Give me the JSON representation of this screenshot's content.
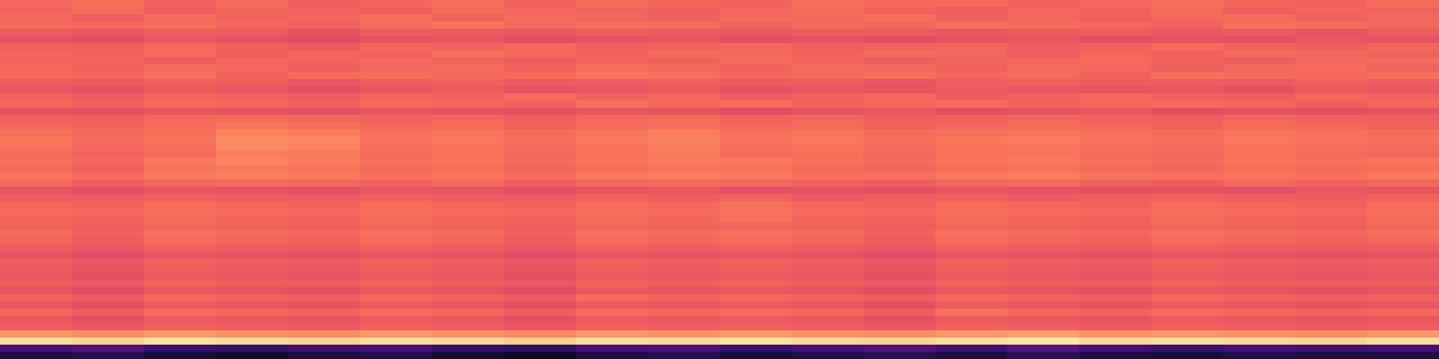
{
  "chart_data": {
    "type": "heatmap",
    "tick_labels": false,
    "color_range": [
      0,
      1
    ],
    "z": [
      [
        0.68,
        0.7,
        0.67,
        0.69,
        0.66,
        0.68,
        0.7,
        0.67,
        0.69,
        0.68,
        0.67,
        0.7,
        0.68,
        0.69,
        0.67,
        0.68,
        0.7,
        0.68,
        0.67,
        0.69
      ],
      [
        0.67,
        0.69,
        0.66,
        0.68,
        0.67,
        0.66,
        0.69,
        0.68,
        0.67,
        0.66,
        0.68,
        0.69,
        0.67,
        0.66,
        0.68,
        0.67,
        0.69,
        0.66,
        0.68,
        0.67
      ],
      [
        0.68,
        0.66,
        0.69,
        0.67,
        0.68,
        0.7,
        0.67,
        0.69,
        0.68,
        0.67,
        0.69,
        0.68,
        0.7,
        0.67,
        0.68,
        0.66,
        0.68,
        0.69,
        0.67,
        0.68
      ],
      [
        0.69,
        0.68,
        0.7,
        0.68,
        0.67,
        0.69,
        0.71,
        0.68,
        0.7,
        0.69,
        0.67,
        0.69,
        0.68,
        0.7,
        0.69,
        0.68,
        0.67,
        0.7,
        0.69,
        0.68
      ],
      [
        0.65,
        0.64,
        0.66,
        0.65,
        0.63,
        0.66,
        0.65,
        0.64,
        0.66,
        0.65,
        0.64,
        0.66,
        0.65,
        0.64,
        0.65,
        0.66,
        0.64,
        0.65,
        0.63,
        0.65
      ],
      [
        0.63,
        0.62,
        0.64,
        0.63,
        0.61,
        0.63,
        0.64,
        0.62,
        0.63,
        0.64,
        0.62,
        0.63,
        0.61,
        0.63,
        0.64,
        0.62,
        0.63,
        0.62,
        0.64,
        0.63
      ],
      [
        0.67,
        0.66,
        0.68,
        0.67,
        0.65,
        0.68,
        0.67,
        0.69,
        0.66,
        0.67,
        0.68,
        0.66,
        0.67,
        0.68,
        0.66,
        0.67,
        0.69,
        0.67,
        0.66,
        0.68
      ],
      [
        0.68,
        0.67,
        0.69,
        0.66,
        0.68,
        0.67,
        0.7,
        0.68,
        0.67,
        0.69,
        0.68,
        0.67,
        0.69,
        0.68,
        0.66,
        0.68,
        0.67,
        0.69,
        0.68,
        0.67
      ],
      [
        0.67,
        0.68,
        0.66,
        0.68,
        0.67,
        0.69,
        0.67,
        0.66,
        0.68,
        0.67,
        0.69,
        0.68,
        0.66,
        0.67,
        0.68,
        0.69,
        0.67,
        0.66,
        0.68,
        0.69
      ],
      [
        0.68,
        0.67,
        0.69,
        0.68,
        0.66,
        0.68,
        0.69,
        0.67,
        0.7,
        0.68,
        0.67,
        0.69,
        0.68,
        0.67,
        0.69,
        0.68,
        0.66,
        0.68,
        0.69,
        0.67
      ],
      [
        0.69,
        0.68,
        0.7,
        0.67,
        0.69,
        0.7,
        0.68,
        0.69,
        0.71,
        0.7,
        0.68,
        0.69,
        0.7,
        0.68,
        0.69,
        0.67,
        0.7,
        0.69,
        0.68,
        0.7
      ],
      [
        0.66,
        0.65,
        0.67,
        0.66,
        0.64,
        0.66,
        0.67,
        0.65,
        0.66,
        0.67,
        0.65,
        0.66,
        0.64,
        0.66,
        0.67,
        0.65,
        0.66,
        0.65,
        0.67,
        0.66
      ],
      [
        0.64,
        0.63,
        0.65,
        0.64,
        0.62,
        0.64,
        0.65,
        0.63,
        0.64,
        0.65,
        0.63,
        0.64,
        0.63,
        0.65,
        0.64,
        0.63,
        0.64,
        0.62,
        0.65,
        0.64
      ],
      [
        0.67,
        0.66,
        0.68,
        0.67,
        0.66,
        0.68,
        0.67,
        0.69,
        0.67,
        0.68,
        0.66,
        0.67,
        0.68,
        0.66,
        0.67,
        0.68,
        0.67,
        0.66,
        0.68,
        0.67
      ],
      [
        0.68,
        0.67,
        0.69,
        0.68,
        0.67,
        0.69,
        0.68,
        0.67,
        0.7,
        0.68,
        0.69,
        0.67,
        0.68,
        0.69,
        0.67,
        0.68,
        0.69,
        0.68,
        0.66,
        0.68
      ],
      [
        0.63,
        0.62,
        0.64,
        0.63,
        0.62,
        0.64,
        0.63,
        0.62,
        0.64,
        0.63,
        0.61,
        0.63,
        0.64,
        0.62,
        0.63,
        0.64,
        0.62,
        0.63,
        0.62,
        0.63
      ],
      [
        0.67,
        0.66,
        0.68,
        0.69,
        0.68,
        0.67,
        0.68,
        0.66,
        0.68,
        0.69,
        0.67,
        0.68,
        0.66,
        0.67,
        0.68,
        0.67,
        0.66,
        0.68,
        0.67,
        0.66
      ],
      [
        0.68,
        0.67,
        0.69,
        0.71,
        0.7,
        0.68,
        0.69,
        0.67,
        0.69,
        0.7,
        0.68,
        0.69,
        0.67,
        0.68,
        0.69,
        0.68,
        0.67,
        0.69,
        0.68,
        0.67
      ],
      [
        0.7,
        0.68,
        0.7,
        0.74,
        0.73,
        0.7,
        0.71,
        0.69,
        0.71,
        0.73,
        0.7,
        0.71,
        0.69,
        0.7,
        0.71,
        0.7,
        0.69,
        0.71,
        0.7,
        0.69
      ],
      [
        0.72,
        0.69,
        0.71,
        0.76,
        0.75,
        0.71,
        0.72,
        0.7,
        0.72,
        0.74,
        0.71,
        0.72,
        0.7,
        0.72,
        0.73,
        0.71,
        0.7,
        0.72,
        0.71,
        0.7
      ],
      [
        0.71,
        0.68,
        0.7,
        0.75,
        0.74,
        0.7,
        0.71,
        0.69,
        0.71,
        0.73,
        0.7,
        0.71,
        0.69,
        0.71,
        0.72,
        0.7,
        0.69,
        0.71,
        0.7,
        0.69
      ],
      [
        0.69,
        0.67,
        0.69,
        0.73,
        0.72,
        0.69,
        0.7,
        0.68,
        0.7,
        0.72,
        0.69,
        0.7,
        0.68,
        0.7,
        0.71,
        0.69,
        0.68,
        0.7,
        0.69,
        0.68
      ],
      [
        0.7,
        0.68,
        0.72,
        0.74,
        0.73,
        0.7,
        0.71,
        0.69,
        0.71,
        0.73,
        0.72,
        0.7,
        0.69,
        0.71,
        0.72,
        0.7,
        0.69,
        0.71,
        0.7,
        0.71
      ],
      [
        0.69,
        0.67,
        0.71,
        0.72,
        0.71,
        0.69,
        0.7,
        0.68,
        0.7,
        0.71,
        0.71,
        0.69,
        0.68,
        0.7,
        0.71,
        0.69,
        0.68,
        0.7,
        0.69,
        0.7
      ],
      [
        0.71,
        0.69,
        0.72,
        0.73,
        0.72,
        0.7,
        0.71,
        0.69,
        0.72,
        0.73,
        0.72,
        0.7,
        0.7,
        0.72,
        0.73,
        0.71,
        0.7,
        0.71,
        0.7,
        0.72
      ],
      [
        0.68,
        0.66,
        0.68,
        0.69,
        0.68,
        0.67,
        0.68,
        0.66,
        0.68,
        0.69,
        0.68,
        0.67,
        0.66,
        0.68,
        0.69,
        0.67,
        0.66,
        0.68,
        0.67,
        0.68
      ],
      [
        0.63,
        0.62,
        0.64,
        0.63,
        0.62,
        0.64,
        0.63,
        0.62,
        0.63,
        0.64,
        0.62,
        0.63,
        0.62,
        0.64,
        0.63,
        0.62,
        0.63,
        0.62,
        0.64,
        0.63
      ],
      [
        0.66,
        0.65,
        0.67,
        0.66,
        0.65,
        0.67,
        0.66,
        0.65,
        0.67,
        0.66,
        0.67,
        0.65,
        0.66,
        0.67,
        0.65,
        0.66,
        0.67,
        0.66,
        0.65,
        0.67
      ],
      [
        0.68,
        0.67,
        0.69,
        0.68,
        0.67,
        0.69,
        0.68,
        0.67,
        0.69,
        0.68,
        0.7,
        0.68,
        0.67,
        0.69,
        0.68,
        0.67,
        0.69,
        0.68,
        0.67,
        0.69
      ],
      [
        0.69,
        0.68,
        0.7,
        0.69,
        0.68,
        0.7,
        0.69,
        0.68,
        0.7,
        0.69,
        0.71,
        0.69,
        0.68,
        0.7,
        0.69,
        0.68,
        0.7,
        0.69,
        0.68,
        0.7
      ],
      [
        0.68,
        0.67,
        0.69,
        0.68,
        0.67,
        0.69,
        0.68,
        0.67,
        0.69,
        0.68,
        0.7,
        0.68,
        0.67,
        0.69,
        0.68,
        0.67,
        0.69,
        0.68,
        0.67,
        0.69
      ],
      [
        0.67,
        0.66,
        0.68,
        0.67,
        0.66,
        0.68,
        0.67,
        0.66,
        0.68,
        0.67,
        0.68,
        0.67,
        0.66,
        0.68,
        0.67,
        0.66,
        0.68,
        0.67,
        0.66,
        0.68
      ],
      [
        0.69,
        0.67,
        0.7,
        0.69,
        0.68,
        0.7,
        0.69,
        0.67,
        0.7,
        0.69,
        0.7,
        0.69,
        0.67,
        0.7,
        0.69,
        0.68,
        0.7,
        0.69,
        0.68,
        0.7
      ],
      [
        0.68,
        0.66,
        0.69,
        0.68,
        0.67,
        0.69,
        0.68,
        0.66,
        0.69,
        0.68,
        0.69,
        0.68,
        0.66,
        0.69,
        0.68,
        0.67,
        0.69,
        0.68,
        0.67,
        0.68
      ],
      [
        0.66,
        0.64,
        0.67,
        0.66,
        0.65,
        0.67,
        0.66,
        0.64,
        0.67,
        0.66,
        0.67,
        0.66,
        0.64,
        0.67,
        0.66,
        0.65,
        0.67,
        0.66,
        0.65,
        0.66
      ],
      [
        0.63,
        0.61,
        0.64,
        0.63,
        0.62,
        0.64,
        0.63,
        0.61,
        0.64,
        0.63,
        0.64,
        0.63,
        0.61,
        0.64,
        0.63,
        0.62,
        0.64,
        0.63,
        0.62,
        0.63
      ],
      [
        0.66,
        0.64,
        0.67,
        0.66,
        0.65,
        0.67,
        0.66,
        0.64,
        0.67,
        0.66,
        0.67,
        0.66,
        0.64,
        0.67,
        0.66,
        0.65,
        0.67,
        0.66,
        0.65,
        0.66
      ],
      [
        0.65,
        0.63,
        0.66,
        0.65,
        0.64,
        0.66,
        0.65,
        0.63,
        0.66,
        0.65,
        0.66,
        0.65,
        0.63,
        0.66,
        0.65,
        0.64,
        0.66,
        0.65,
        0.64,
        0.65
      ],
      [
        0.64,
        0.62,
        0.65,
        0.64,
        0.63,
        0.65,
        0.64,
        0.62,
        0.65,
        0.64,
        0.65,
        0.64,
        0.62,
        0.65,
        0.64,
        0.63,
        0.65,
        0.64,
        0.63,
        0.64
      ],
      [
        0.66,
        0.64,
        0.67,
        0.66,
        0.65,
        0.67,
        0.66,
        0.64,
        0.67,
        0.66,
        0.67,
        0.66,
        0.64,
        0.67,
        0.66,
        0.65,
        0.67,
        0.66,
        0.65,
        0.66
      ],
      [
        0.63,
        0.61,
        0.64,
        0.63,
        0.62,
        0.64,
        0.63,
        0.61,
        0.64,
        0.63,
        0.64,
        0.63,
        0.61,
        0.64,
        0.63,
        0.62,
        0.64,
        0.63,
        0.62,
        0.63
      ],
      [
        0.67,
        0.65,
        0.68,
        0.67,
        0.66,
        0.68,
        0.67,
        0.65,
        0.69,
        0.67,
        0.68,
        0.67,
        0.66,
        0.68,
        0.67,
        0.66,
        0.68,
        0.67,
        0.66,
        0.67
      ],
      [
        0.64,
        0.62,
        0.65,
        0.64,
        0.63,
        0.65,
        0.64,
        0.62,
        0.65,
        0.64,
        0.65,
        0.64,
        0.62,
        0.65,
        0.64,
        0.63,
        0.65,
        0.64,
        0.63,
        0.64
      ],
      [
        0.68,
        0.66,
        0.69,
        0.68,
        0.67,
        0.69,
        0.68,
        0.66,
        0.69,
        0.68,
        0.69,
        0.68,
        0.66,
        0.7,
        0.68,
        0.67,
        0.69,
        0.68,
        0.67,
        0.68
      ],
      [
        0.64,
        0.62,
        0.65,
        0.64,
        0.63,
        0.65,
        0.64,
        0.62,
        0.65,
        0.64,
        0.65,
        0.64,
        0.62,
        0.65,
        0.64,
        0.63,
        0.65,
        0.64,
        0.63,
        0.64
      ],
      [
        0.66,
        0.64,
        0.67,
        0.66,
        0.65,
        0.67,
        0.66,
        0.64,
        0.67,
        0.66,
        0.67,
        0.66,
        0.64,
        0.67,
        0.66,
        0.65,
        0.67,
        0.66,
        0.65,
        0.66
      ],
      [
        0.78,
        0.76,
        0.79,
        0.77,
        0.76,
        0.78,
        0.77,
        0.75,
        0.78,
        0.77,
        0.79,
        0.77,
        0.76,
        0.78,
        0.8,
        0.77,
        0.78,
        0.77,
        0.76,
        0.78
      ],
      [
        0.93,
        0.91,
        0.94,
        0.92,
        0.91,
        0.93,
        0.92,
        0.9,
        0.93,
        0.92,
        0.94,
        0.92,
        0.91,
        0.93,
        0.95,
        0.92,
        0.93,
        0.92,
        0.91,
        0.93
      ],
      [
        0.22,
        0.25,
        0.2,
        0.18,
        0.21,
        0.23,
        0.19,
        0.17,
        0.22,
        0.24,
        0.2,
        0.23,
        0.25,
        0.21,
        0.26,
        0.22,
        0.2,
        0.23,
        0.21,
        0.22
      ],
      [
        0.12,
        0.14,
        0.1,
        0.08,
        0.11,
        0.13,
        0.09,
        0.07,
        0.12,
        0.14,
        0.1,
        0.13,
        0.15,
        0.11,
        0.16,
        0.12,
        0.1,
        0.13,
        0.11,
        0.12
      ]
    ]
  }
}
